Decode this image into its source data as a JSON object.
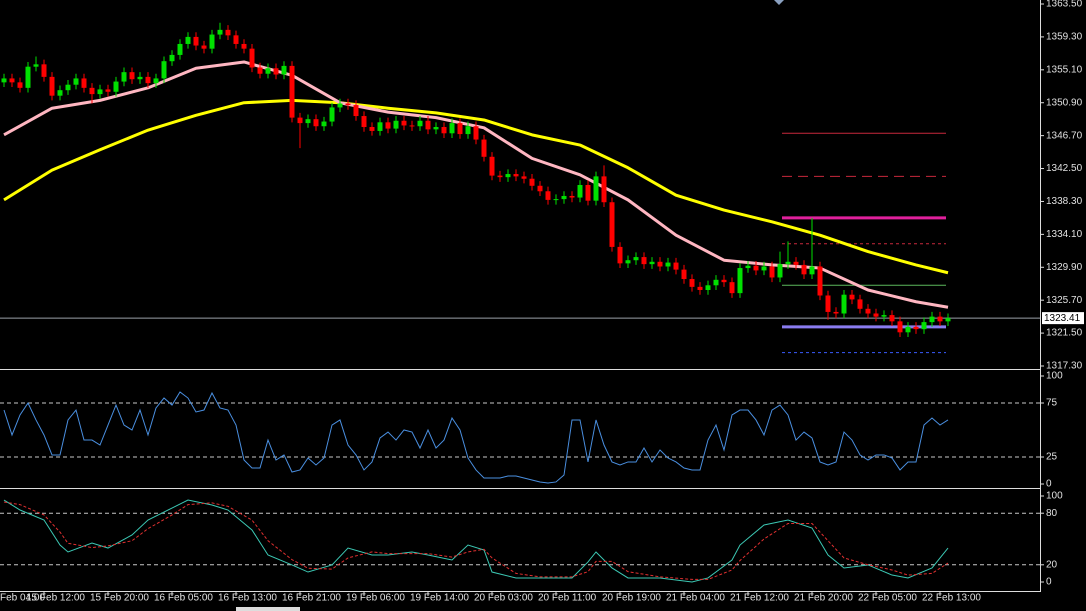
{
  "chart_data": [
    {
      "type": "candlestick",
      "ylim": [
        1317.3,
        1363.5
      ],
      "yticks": [
        {
          "value": 1363.5,
          "label": "1363.50"
        },
        {
          "value": 1359.3,
          "label": "1359.30"
        },
        {
          "value": 1355.1,
          "label": "1355.10"
        },
        {
          "value": 1350.9,
          "label": "1350.90"
        },
        {
          "value": 1346.7,
          "label": "1346.70"
        },
        {
          "value": 1342.5,
          "label": "1342.50"
        },
        {
          "value": 1338.3,
          "label": "1338.30"
        },
        {
          "value": 1334.1,
          "label": "1334.10"
        },
        {
          "value": 1329.9,
          "label": "1329.90"
        },
        {
          "value": 1325.7,
          "label": "1325.70"
        },
        {
          "value": 1321.5,
          "label": "1321.50"
        },
        {
          "value": 1317.3,
          "label": "1317.30"
        }
      ],
      "xticks": [
        {
          "value": -3,
          "label": "Feb 04:00"
        },
        {
          "value": 5,
          "label": "15 Feb 12:00"
        },
        {
          "value": 13,
          "label": "15 Feb 20:00"
        },
        {
          "value": 21,
          "label": "16 Feb 05:00"
        },
        {
          "value": 29,
          "label": "16 Feb 13:00"
        },
        {
          "value": 37,
          "label": "16 Feb 21:00"
        },
        {
          "value": 45,
          "label": "19 Feb 06:00"
        },
        {
          "value": 53,
          "label": "19 Feb 14:00"
        },
        {
          "value": 61,
          "label": "20 Feb 03:00"
        },
        {
          "value": 69,
          "label": "20 Feb 11:00"
        },
        {
          "value": 77,
          "label": "20 Feb 19:00"
        },
        {
          "value": 85,
          "label": "21 Feb 04:00"
        },
        {
          "value": 93,
          "label": "21 Feb 12:00"
        },
        {
          "value": 101,
          "label": "21 Feb 20:00"
        },
        {
          "value": 109,
          "label": "22 Feb 05:00"
        },
        {
          "value": 117,
          "label": "22 Feb 13:00"
        }
      ],
      "up_color": "#00e000",
      "down_color": "#ff0000",
      "open": [
        1353.5,
        1354.0,
        1353.5,
        1352.8,
        1355.5,
        1355.8,
        1354.2,
        1351.8,
        1352.5,
        1353.2,
        1354.0,
        1352.8,
        1352.0,
        1352.6,
        1352.3,
        1353.6,
        1354.8,
        1353.9,
        1354.2,
        1353.4,
        1354.0,
        1356.2,
        1357.0,
        1358.4,
        1359.3,
        1358.2,
        1357.8,
        1359.6,
        1360.2,
        1359.5,
        1358.4,
        1357.8,
        1355.4,
        1354.6,
        1355.3,
        1354.5,
        1355.6,
        1349.0,
        1348.3,
        1348.8,
        1347.9,
        1348.5,
        1350.3,
        1350.8,
        1350.6,
        1349.2,
        1347.8,
        1347.3,
        1348.4,
        1347.6,
        1348.6,
        1348.0,
        1347.9,
        1348.6,
        1347.5,
        1347.8,
        1347.0,
        1348.3,
        1346.9,
        1347.9,
        1346.2,
        1344.0,
        1341.6,
        1341.4,
        1341.8,
        1341.5,
        1341.2,
        1340.3,
        1339.6,
        1338.5,
        1338.6,
        1339.0,
        1338.8,
        1340.4,
        1338.4,
        1341.5,
        1338.2,
        1332.5,
        1330.4,
        1330.8,
        1331.2,
        1330.3,
        1330.6,
        1330.0,
        1330.5,
        1329.6,
        1328.4,
        1327.4,
        1327.0,
        1327.6,
        1328.3,
        1328.0,
        1326.6,
        1329.8,
        1330.1,
        1329.5,
        1330.0,
        1328.6,
        1330.3,
        1330.6,
        1330.2,
        1329.0,
        1330.0,
        1326.3,
        1324.2,
        1324.0,
        1326.4,
        1325.8,
        1324.6,
        1324.0,
        1323.6,
        1323.8,
        1323.0,
        1321.6,
        1322.3,
        1322.0,
        1322.9,
        1323.6,
        1323.0
      ],
      "high": [
        1354.6,
        1354.6,
        1354.1,
        1356.1,
        1356.8,
        1356.4,
        1354.8,
        1353.1,
        1353.8,
        1354.6,
        1354.6,
        1353.4,
        1353.2,
        1353.2,
        1354.2,
        1355.4,
        1355.4,
        1354.8,
        1354.8,
        1354.6,
        1356.8,
        1357.6,
        1359.0,
        1359.9,
        1359.9,
        1358.8,
        1360.2,
        1361.1,
        1360.8,
        1360.1,
        1359.0,
        1358.4,
        1356.0,
        1355.9,
        1355.9,
        1356.2,
        1356.2,
        1349.6,
        1349.4,
        1349.4,
        1349.1,
        1350.9,
        1351.4,
        1351.4,
        1351.2,
        1349.8,
        1348.4,
        1349.0,
        1349.0,
        1349.2,
        1349.2,
        1348.6,
        1349.2,
        1349.2,
        1348.4,
        1348.4,
        1348.9,
        1348.9,
        1348.5,
        1348.5,
        1346.8,
        1344.6,
        1342.2,
        1342.4,
        1342.4,
        1342.1,
        1341.8,
        1340.9,
        1340.2,
        1339.2,
        1339.6,
        1339.6,
        1341.0,
        1341.0,
        1342.1,
        1342.9,
        1338.8,
        1333.1,
        1331.4,
        1331.8,
        1331.8,
        1331.2,
        1331.2,
        1331.1,
        1331.1,
        1330.2,
        1329.0,
        1328.0,
        1328.2,
        1328.9,
        1328.9,
        1328.6,
        1330.4,
        1330.7,
        1330.7,
        1330.6,
        1330.6,
        1331.9,
        1333.2,
        1331.2,
        1330.8,
        1336.2,
        1330.6,
        1326.9,
        1324.8,
        1327.0,
        1327.0,
        1326.4,
        1325.2,
        1324.6,
        1324.4,
        1324.4,
        1323.6,
        1322.9,
        1322.9,
        1323.5,
        1324.2,
        1324.2,
        1324.0
      ],
      "low": [
        1352.9,
        1352.9,
        1352.2,
        1352.2,
        1354.9,
        1353.6,
        1351.2,
        1351.2,
        1351.9,
        1352.6,
        1352.2,
        1350.8,
        1351.4,
        1351.7,
        1351.7,
        1353.0,
        1353.3,
        1353.3,
        1352.8,
        1352.8,
        1353.4,
        1355.6,
        1356.4,
        1357.8,
        1357.6,
        1357.2,
        1357.2,
        1359.0,
        1358.9,
        1357.8,
        1357.2,
        1354.8,
        1354.0,
        1354.0,
        1353.9,
        1353.9,
        1348.4,
        1345.1,
        1347.7,
        1347.3,
        1347.3,
        1347.9,
        1349.7,
        1350.0,
        1348.6,
        1347.2,
        1346.7,
        1346.7,
        1347.0,
        1347.0,
        1347.4,
        1347.3,
        1347.3,
        1346.9,
        1346.9,
        1346.4,
        1346.4,
        1346.3,
        1346.3,
        1345.6,
        1343.4,
        1341.0,
        1340.8,
        1340.8,
        1340.9,
        1340.6,
        1339.7,
        1339.0,
        1337.9,
        1337.9,
        1338.0,
        1338.2,
        1338.2,
        1337.8,
        1337.8,
        1337.6,
        1331.9,
        1329.8,
        1329.8,
        1330.2,
        1329.7,
        1329.7,
        1329.4,
        1329.4,
        1329.0,
        1327.8,
        1326.8,
        1326.4,
        1326.4,
        1327.0,
        1327.4,
        1326.0,
        1326.0,
        1329.2,
        1328.9,
        1328.9,
        1328.0,
        1328.0,
        1329.7,
        1329.6,
        1328.4,
        1328.4,
        1325.7,
        1323.2,
        1323.4,
        1323.4,
        1325.2,
        1324.0,
        1323.4,
        1323.0,
        1323.0,
        1322.4,
        1321.0,
        1321.0,
        1321.4,
        1321.4,
        1322.3,
        1322.4,
        1322.4
      ],
      "close": [
        1354.0,
        1353.5,
        1352.8,
        1355.5,
        1355.8,
        1354.2,
        1351.8,
        1352.5,
        1353.2,
        1354.0,
        1352.8,
        1352.0,
        1352.6,
        1352.3,
        1353.6,
        1354.8,
        1353.9,
        1354.2,
        1353.4,
        1354.0,
        1356.2,
        1357.0,
        1358.4,
        1359.3,
        1358.2,
        1357.8,
        1359.6,
        1360.2,
        1359.5,
        1358.4,
        1357.8,
        1355.4,
        1354.6,
        1355.3,
        1354.5,
        1355.6,
        1349.0,
        1348.3,
        1348.8,
        1347.9,
        1348.5,
        1350.3,
        1350.8,
        1350.6,
        1349.2,
        1347.8,
        1347.3,
        1348.4,
        1347.6,
        1348.6,
        1348.0,
        1347.9,
        1348.6,
        1347.5,
        1347.8,
        1347.0,
        1348.3,
        1346.9,
        1347.9,
        1346.2,
        1344.0,
        1341.6,
        1341.4,
        1341.8,
        1341.5,
        1341.2,
        1340.3,
        1339.6,
        1338.5,
        1338.6,
        1339.0,
        1338.8,
        1340.4,
        1338.4,
        1341.5,
        1338.2,
        1332.5,
        1330.4,
        1330.8,
        1331.2,
        1330.3,
        1330.6,
        1330.0,
        1330.5,
        1329.6,
        1328.4,
        1327.4,
        1327.0,
        1327.6,
        1328.3,
        1328.0,
        1326.6,
        1329.8,
        1330.1,
        1329.5,
        1330.0,
        1328.6,
        1330.3,
        1330.6,
        1330.2,
        1329.0,
        1330.0,
        1326.3,
        1324.2,
        1324.0,
        1326.4,
        1325.8,
        1324.6,
        1324.0,
        1323.6,
        1323.8,
        1323.0,
        1321.6,
        1322.3,
        1322.0,
        1322.9,
        1323.6,
        1323.0,
        1323.41
      ],
      "ma": [
        {
          "color": "#ffff00",
          "x": [
            0,
            6,
            12,
            18,
            24,
            30,
            36,
            42,
            48,
            54,
            60,
            66,
            72,
            78,
            84,
            90,
            96,
            102,
            108,
            114,
            118
          ],
          "values": [
            1338.5,
            1342.3,
            1344.9,
            1347.4,
            1349.3,
            1350.9,
            1351.2,
            1350.9,
            1350.2,
            1349.6,
            1348.7,
            1346.8,
            1345.5,
            1342.6,
            1339.1,
            1337.2,
            1335.7,
            1334.0,
            1331.9,
            1330.2,
            1329.2
          ]
        },
        {
          "color": "#ffb6c1",
          "x": [
            0,
            6,
            12,
            18,
            24,
            30,
            36,
            42,
            48,
            54,
            60,
            66,
            72,
            78,
            84,
            90,
            96,
            102,
            108,
            114,
            118
          ],
          "values": [
            1346.8,
            1350.2,
            1351.2,
            1352.8,
            1355.3,
            1356.1,
            1354.4,
            1350.9,
            1349.7,
            1349.0,
            1347.7,
            1343.8,
            1341.7,
            1338.5,
            1334.0,
            1330.8,
            1330.2,
            1329.8,
            1327.0,
            1325.5,
            1324.8
          ]
        }
      ],
      "levels": [
        {
          "value": 1347.0,
          "color": "#c8283c",
          "style": "solid"
        },
        {
          "value": 1341.5,
          "color": "#c8283c",
          "style": "dashed"
        },
        {
          "value": 1336.2,
          "color": "#e0209c",
          "style": "thick"
        },
        {
          "value": 1332.9,
          "color": "#c8283c",
          "style": "dotted"
        },
        {
          "value": 1327.6,
          "color": "#5cb85c",
          "style": "solid"
        },
        {
          "value": 1322.3,
          "color": "#8a7cf0",
          "style": "thick"
        },
        {
          "value": 1319.0,
          "color": "#3a5cff",
          "style": "dotted"
        }
      ],
      "current_price": 1323.41
    },
    {
      "type": "line",
      "ylim": [
        0,
        100
      ],
      "yticks": [
        0,
        25,
        75,
        100
      ],
      "levels": [
        25,
        75
      ],
      "series": [
        {
          "color": "#4a8fe0",
          "values": [
            68.5,
            45.4,
            63.9,
            75,
            59.3,
            45.4,
            26.9,
            26.9,
            59.3,
            68.5,
            40.7,
            40.7,
            36.1,
            54.6,
            73.1,
            54.6,
            50,
            68.5,
            45.4,
            70.4,
            79.6,
            73.1,
            85.2,
            79.6,
            66.7,
            68.5,
            84.3,
            70.4,
            68.5,
            54.6,
            22.2,
            14.8,
            14.8,
            40.7,
            22.2,
            26.9,
            11.1,
            13,
            24.1,
            17.6,
            24.1,
            54.6,
            59.3,
            36.1,
            26.9,
            13,
            20.4,
            42.6,
            48.1,
            40.7,
            50,
            48.1,
            33.3,
            50,
            33.3,
            40.7,
            61.1,
            50,
            24.1,
            13,
            5.6,
            5.6,
            5.6,
            7.4,
            7.4,
            5.6,
            3.7,
            1.9,
            0.9,
            1.9,
            8.3,
            59.3,
            59.3,
            20.4,
            59.3,
            36.1,
            20.4,
            17.6,
            20.4,
            20.4,
            33.3,
            20.4,
            31.5,
            24.1,
            20.4,
            14.8,
            13,
            13,
            40.7,
            54.6,
            31.5,
            63.9,
            68.5,
            68.5,
            59.3,
            45.4,
            68.5,
            73.1,
            63.9,
            40.7,
            48.1,
            42.6,
            20.4,
            17.6,
            20.4,
            48.1,
            40.7,
            26.9,
            22.2,
            26.9,
            26.9,
            24.1,
            13,
            20.4,
            20.4,
            54.6,
            61.1,
            54.6,
            59.3
          ]
        }
      ]
    },
    {
      "type": "line",
      "ylim": [
        0,
        100
      ],
      "yticks": [
        0,
        20,
        80,
        100
      ],
      "levels": [
        20,
        80
      ],
      "series": [
        {
          "color": "#3cc8b4",
          "dash": false,
          "x": [
            0,
            2,
            5,
            7,
            8,
            11,
            13,
            16,
            18,
            21,
            23,
            26,
            28,
            31,
            33,
            36,
            38,
            41,
            43,
            46,
            48,
            51,
            53,
            56,
            58,
            60,
            61,
            64,
            67,
            71,
            73,
            74,
            76,
            78,
            82,
            86,
            88,
            91,
            92,
            95,
            98,
            101,
            103,
            105,
            108,
            111,
            113,
            116,
            118
          ],
          "values": [
            95.3,
            83.7,
            72.1,
            43.0,
            34.9,
            45.3,
            39.5,
            54.7,
            72.1,
            86.0,
            95.3,
            89.5,
            83.7,
            60.5,
            31.4,
            19.8,
            11.6,
            19.8,
            39.5,
            31.4,
            31.4,
            34.9,
            31.4,
            25.6,
            43.0,
            37.2,
            11.6,
            4.7,
            4.7,
            4.7,
            23.3,
            34.9,
            16.3,
            4.7,
            4.7,
            0,
            4.7,
            25.6,
            43.0,
            66.3,
            72.1,
            62.8,
            31.4,
            16.3,
            19.8,
            8.1,
            4.7,
            16.3,
            39.5
          ]
        },
        {
          "color": "#e03030",
          "dash": true,
          "x": [
            0,
            2,
            5,
            7,
            8,
            11,
            13,
            16,
            18,
            21,
            23,
            26,
            28,
            31,
            33,
            36,
            38,
            41,
            43,
            46,
            48,
            51,
            53,
            56,
            58,
            60,
            61,
            64,
            67,
            71,
            73,
            74,
            76,
            78,
            82,
            86,
            88,
            91,
            92,
            95,
            98,
            101,
            103,
            105,
            108,
            111,
            113,
            116,
            118
          ],
          "values": [
            93,
            90,
            78,
            58,
            45,
            40,
            42,
            48,
            62,
            78,
            90,
            92,
            88,
            72,
            48,
            26,
            16,
            15,
            28,
            35,
            33,
            33,
            33,
            29,
            35,
            38,
            28,
            10,
            6,
            6,
            12,
            24,
            24,
            12,
            6,
            3,
            3,
            14,
            25,
            50,
            68,
            68,
            48,
            28,
            20,
            14,
            8,
            10,
            22
          ]
        }
      ]
    }
  ]
}
